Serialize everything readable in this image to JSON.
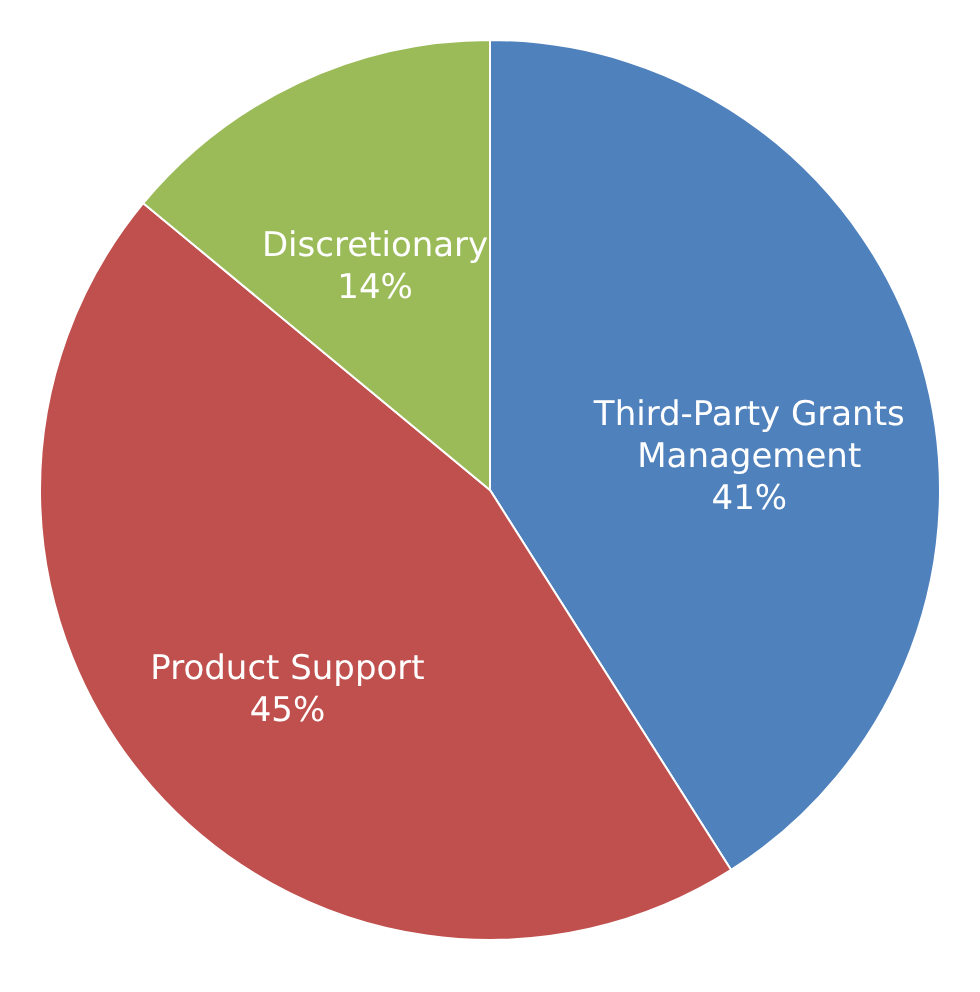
{
  "chart_data": {
    "type": "pie",
    "categories": [
      "Third-Party Grants Management",
      "Product Support",
      "Discretionary"
    ],
    "values": [
      41,
      45,
      14
    ],
    "colors": [
      "#4f81bd",
      "#c0504d",
      "#9bbb59"
    ],
    "value_labels": [
      "41%",
      "45%",
      "14%"
    ],
    "legend": false
  }
}
